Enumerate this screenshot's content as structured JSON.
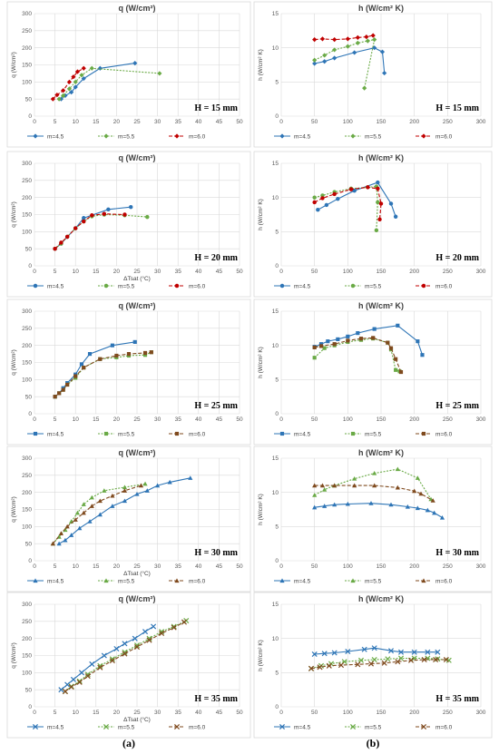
{
  "panel_labels": [
    "(a)",
    "(b)"
  ],
  "legend_labels": [
    "m=4.5",
    "m=5.5",
    "m=6.0"
  ],
  "colors": {
    "m=4.5": "#2e75b6",
    "m=5.5": "#6aaa46",
    "m=6.0": "#c00000",
    "m=6.0_alt": "#7f4a1e"
  },
  "chart_data": [
    {
      "type": "line",
      "panel": "a",
      "row": 1,
      "title": "q (W/cm²)",
      "ylabel": "q (W/cm²)",
      "xlabel": "",
      "annotation": "H = 15 mm",
      "xlim": [
        0,
        50
      ],
      "ylim": [
        0,
        300
      ],
      "xticks": [
        0,
        5,
        10,
        15,
        20,
        25,
        30,
        35,
        40,
        45,
        50
      ],
      "yticks": [
        0,
        50,
        100,
        150,
        200,
        250,
        300
      ],
      "grid": true,
      "legend": "bottom",
      "marker": "diamond",
      "series": [
        {
          "name": "m=4.5",
          "x": [
            6.5,
            7.5,
            9,
            10,
            12,
            16,
            24.5
          ],
          "y": [
            50,
            60,
            70,
            85,
            110,
            140,
            155
          ]
        },
        {
          "name": "m=5.5",
          "x": [
            6,
            7,
            8.5,
            10,
            11.5,
            14,
            30.5
          ],
          "y": [
            50,
            60,
            80,
            100,
            120,
            140,
            125
          ]
        },
        {
          "name": "m=6.0",
          "x": [
            4.5,
            5.5,
            7,
            8.5,
            9.5,
            10.5,
            12
          ],
          "y": [
            50,
            62,
            75,
            100,
            115,
            130,
            140
          ]
        }
      ]
    },
    {
      "type": "line",
      "panel": "b",
      "row": 1,
      "title": "h (W/cm² K)",
      "ylabel": "h (W/cm² K)",
      "xlabel": "",
      "annotation": "H = 15 mm",
      "xlim": [
        0,
        300
      ],
      "ylim": [
        0,
        15
      ],
      "xticks": [
        0,
        50,
        100,
        150,
        200,
        250,
        300
      ],
      "yticks": [
        0,
        5,
        10,
        15
      ],
      "grid": true,
      "legend": "bottom",
      "marker": "diamond",
      "series": [
        {
          "name": "m=4.5",
          "x": [
            50,
            65,
            80,
            110,
            140,
            152,
            155
          ],
          "y": [
            7.7,
            8.0,
            8.5,
            9.3,
            10.0,
            9.4,
            6.3
          ]
        },
        {
          "name": "m=5.5",
          "x": [
            50,
            65,
            80,
            100,
            115,
            130,
            140,
            125
          ],
          "y": [
            8.2,
            8.9,
            9.7,
            10.2,
            10.7,
            11.0,
            11.2,
            4.1
          ]
        },
        {
          "name": "m=6.0",
          "x": [
            50,
            62,
            80,
            100,
            115,
            128,
            138
          ],
          "y": [
            11.2,
            11.3,
            11.2,
            11.3,
            11.5,
            11.6,
            11.8
          ]
        }
      ]
    },
    {
      "type": "line",
      "panel": "a",
      "row": 2,
      "title": "q (W/cm²)",
      "ylabel": "q (W/cm²)",
      "xlabel": "ΔTsat (°C)",
      "annotation": "H = 20 mm",
      "xlim": [
        0,
        50
      ],
      "ylim": [
        0,
        300
      ],
      "xticks": [
        0,
        5,
        10,
        15,
        20,
        25,
        30,
        35,
        40,
        45,
        50
      ],
      "yticks": [
        0,
        50,
        100,
        150,
        200,
        250,
        300
      ],
      "grid": true,
      "legend": "bottom",
      "marker": "circle",
      "series": [
        {
          "name": "m=4.5",
          "x": [
            5,
            6.5,
            8,
            10,
            12,
            18,
            23.5
          ],
          "y": [
            50,
            65,
            85,
            110,
            140,
            165,
            172
          ]
        },
        {
          "name": "m=5.5",
          "x": [
            5,
            6.5,
            8,
            10,
            12,
            14,
            17,
            22,
            27.5
          ],
          "y": [
            50,
            65,
            85,
            110,
            130,
            145,
            150,
            148,
            143
          ]
        },
        {
          "name": "m=6.0",
          "x": [
            5,
            6.5,
            8,
            10,
            12,
            14,
            17,
            22
          ],
          "y": [
            50,
            68,
            85,
            110,
            130,
            148,
            152,
            150
          ]
        }
      ]
    },
    {
      "type": "line",
      "panel": "b",
      "row": 2,
      "title": "h (W/cm² K)",
      "ylabel": "h (W/cm² K)",
      "xlabel": "",
      "annotation": "H = 20 mm",
      "xlim": [
        0,
        300
      ],
      "ylim": [
        0,
        15
      ],
      "xticks": [
        0,
        50,
        100,
        150,
        200,
        250,
        300
      ],
      "yticks": [
        0,
        5,
        10,
        15
      ],
      "grid": true,
      "legend": "bottom",
      "marker": "circle",
      "series": [
        {
          "name": "m=4.5",
          "x": [
            55,
            68,
            85,
            110,
            145,
            165,
            172
          ],
          "y": [
            8.2,
            8.9,
            9.8,
            11.0,
            12.2,
            9.1,
            7.2
          ]
        },
        {
          "name": "m=5.5",
          "x": [
            50,
            62,
            80,
            105,
            130,
            143,
            145,
            143
          ],
          "y": [
            10.0,
            10.3,
            10.8,
            11.3,
            11.5,
            11.6,
            9.3,
            5.2
          ]
        },
        {
          "name": "m=6.0",
          "x": [
            50,
            62,
            80,
            105,
            130,
            145,
            150,
            148
          ],
          "y": [
            9.3,
            9.9,
            10.5,
            11.2,
            11.5,
            11.3,
            9.1,
            6.8
          ]
        }
      ]
    },
    {
      "type": "line",
      "panel": "a",
      "row": 3,
      "title": "q (W/cm²)",
      "ylabel": "q (W/cm²)",
      "xlabel": "",
      "annotation": "H = 25 mm",
      "xlim": [
        0,
        50
      ],
      "ylim": [
        0,
        300
      ],
      "xticks": [
        0,
        5,
        10,
        15,
        20,
        25,
        30,
        35,
        40,
        45,
        50
      ],
      "yticks": [
        0,
        50,
        100,
        150,
        200,
        250,
        300
      ],
      "grid": true,
      "legend": "bottom",
      "marker": "square",
      "series": [
        {
          "name": "m=4.5",
          "x": [
            5,
            6,
            7,
            8,
            10,
            11.5,
            13.5,
            19,
            24.5
          ],
          "y": [
            50,
            60,
            75,
            90,
            115,
            145,
            175,
            200,
            210
          ]
        },
        {
          "name": "m=5.5",
          "x": [
            5,
            6,
            7,
            8,
            10,
            12,
            16,
            20,
            23,
            27,
            28.5
          ],
          "y": [
            50,
            60,
            70,
            85,
            105,
            135,
            160,
            165,
            170,
            172,
            180
          ]
        },
        {
          "name": "m=6.0",
          "x": [
            5,
            6,
            7,
            8,
            10,
            12,
            16,
            20,
            23,
            27,
            28.5
          ],
          "y": [
            50,
            60,
            70,
            85,
            110,
            135,
            160,
            170,
            175,
            178,
            180
          ]
        }
      ]
    },
    {
      "type": "line",
      "panel": "b",
      "row": 3,
      "title": "h (W/cm² K)",
      "ylabel": "h (W/cm² K)",
      "xlabel": "",
      "annotation": "H = 25 mm",
      "xlim": [
        0,
        300
      ],
      "ylim": [
        0,
        15
      ],
      "xticks": [
        0,
        50,
        100,
        150,
        200,
        250,
        300
      ],
      "yticks": [
        0,
        5,
        10,
        15
      ],
      "grid": true,
      "legend": "bottom",
      "marker": "square",
      "series": [
        {
          "name": "m=4.5",
          "x": [
            50,
            60,
            70,
            85,
            100,
            115,
            140,
            175,
            205,
            212
          ],
          "y": [
            9.8,
            10.2,
            10.6,
            10.9,
            11.3,
            11.8,
            12.4,
            12.9,
            10.6,
            8.6
          ]
        },
        {
          "name": "m=5.5",
          "x": [
            50,
            65,
            80,
            100,
            120,
            138,
            160,
            165,
            172,
            178
          ],
          "y": [
            8.2,
            9.6,
            10.0,
            10.5,
            10.8,
            11.0,
            10.4,
            9.4,
            6.4,
            6.2
          ]
        },
        {
          "name": "m=6.0",
          "x": [
            50,
            60,
            80,
            100,
            120,
            138,
            160,
            165,
            172,
            180
          ],
          "y": [
            9.7,
            9.9,
            10.2,
            10.7,
            11.0,
            11.1,
            10.4,
            9.6,
            8.0,
            6.1
          ]
        }
      ]
    },
    {
      "type": "line",
      "panel": "a",
      "row": 4,
      "title": "q (W/cm²)",
      "ylabel": "q (W/cm²)",
      "xlabel": "ΔTsat (°C)",
      "annotation": "H = 30 mm",
      "xlim": [
        0,
        50
      ],
      "ylim": [
        0,
        300
      ],
      "xticks": [
        0,
        5,
        10,
        15,
        20,
        25,
        30,
        35,
        40,
        45,
        50
      ],
      "yticks": [
        0,
        50,
        100,
        150,
        200,
        250,
        300
      ],
      "grid": true,
      "legend": "bottom",
      "marker": "triangle",
      "series": [
        {
          "name": "m=4.5",
          "x": [
            6,
            7.5,
            9,
            11,
            13.5,
            16,
            19,
            22,
            25,
            27.5,
            30,
            33,
            38
          ],
          "y": [
            50,
            60,
            75,
            95,
            115,
            135,
            160,
            175,
            195,
            205,
            220,
            230,
            242
          ]
        },
        {
          "name": "m=5.5",
          "x": [
            4.5,
            6,
            7.5,
            9,
            10.5,
            12,
            14,
            17,
            22,
            27
          ],
          "y": [
            50,
            70,
            90,
            115,
            140,
            165,
            185,
            205,
            215,
            225
          ]
        },
        {
          "name": "m=6.0",
          "x": [
            4.5,
            6.5,
            8,
            10,
            12,
            14,
            16,
            19,
            22,
            26
          ],
          "y": [
            50,
            80,
            100,
            120,
            140,
            160,
            175,
            190,
            205,
            220
          ]
        }
      ]
    },
    {
      "type": "line",
      "panel": "b",
      "row": 4,
      "title": "h (W/cm² K)",
      "ylabel": "h (W/cm² K)",
      "xlabel": "",
      "annotation": "H = 30 mm",
      "xlim": [
        0,
        300
      ],
      "ylim": [
        0,
        15
      ],
      "xticks": [
        0,
        50,
        100,
        150,
        200,
        250,
        300
      ],
      "yticks": [
        0,
        5,
        10,
        15
      ],
      "grid": true,
      "legend": "bottom",
      "marker": "triangle",
      "series": [
        {
          "name": "m=4.5",
          "x": [
            50,
            65,
            80,
            100,
            135,
            165,
            190,
            205,
            220,
            230,
            242
          ],
          "y": [
            7.8,
            8.0,
            8.2,
            8.3,
            8.4,
            8.2,
            7.9,
            7.7,
            7.4,
            7.0,
            6.3
          ]
        },
        {
          "name": "m=5.5",
          "x": [
            50,
            65,
            80,
            110,
            140,
            175,
            205,
            225
          ],
          "y": [
            9.6,
            10.4,
            11.0,
            12.0,
            12.8,
            13.4,
            12.1,
            9.0
          ]
        },
        {
          "name": "m=6.0",
          "x": [
            50,
            62,
            80,
            110,
            140,
            175,
            200,
            210,
            228
          ],
          "y": [
            11.0,
            11.0,
            11.0,
            11.0,
            11.0,
            10.7,
            10.2,
            9.8,
            8.8
          ]
        }
      ]
    },
    {
      "type": "line",
      "panel": "a",
      "row": 5,
      "title": "q (W/cm²)",
      "ylabel": "q (W/cm²)",
      "xlabel": "ΔTsat (°C)",
      "annotation": "H = 35 mm",
      "xlim": [
        0,
        50
      ],
      "ylim": [
        0,
        300
      ],
      "xticks": [
        0,
        5,
        10,
        15,
        20,
        25,
        30,
        35,
        40,
        45,
        50
      ],
      "yticks": [
        0,
        50,
        100,
        150,
        200,
        250,
        300
      ],
      "grid": true,
      "legend": "bottom",
      "marker": "cross",
      "series": [
        {
          "name": "m=4.5",
          "x": [
            6.5,
            8,
            9.5,
            11.5,
            14,
            17,
            20,
            22,
            24.5,
            27,
            29
          ],
          "y": [
            50,
            65,
            80,
            100,
            125,
            150,
            170,
            185,
            200,
            220,
            235
          ]
        },
        {
          "name": "m=5.5",
          "x": [
            7.5,
            9,
            11,
            13,
            16,
            19,
            22,
            25,
            28,
            31,
            34,
            37
          ],
          "y": [
            45,
            60,
            75,
            95,
            120,
            140,
            160,
            180,
            200,
            220,
            235,
            252
          ]
        },
        {
          "name": "m=6.0",
          "x": [
            7.5,
            9,
            11,
            13,
            16,
            19,
            22,
            25,
            28,
            31,
            34,
            36.5
          ],
          "y": [
            45,
            58,
            72,
            90,
            115,
            135,
            155,
            175,
            195,
            215,
            232,
            248
          ]
        }
      ]
    },
    {
      "type": "line",
      "panel": "b",
      "row": 5,
      "title": "h (W/cm² K)",
      "ylabel": "h (W/cm² K)",
      "xlabel": "",
      "annotation": "H = 35 mm",
      "xlim": [
        0,
        300
      ],
      "ylim": [
        0,
        15
      ],
      "xticks": [
        0,
        50,
        100,
        150,
        200,
        250,
        300
      ],
      "yticks": [
        0,
        5,
        10,
        15
      ],
      "grid": true,
      "legend": "bottom",
      "marker": "cross",
      "series": [
        {
          "name": "m=4.5",
          "x": [
            50,
            65,
            80,
            100,
            125,
            140,
            165,
            180,
            200,
            220,
            235
          ],
          "y": [
            7.7,
            7.8,
            7.9,
            8.1,
            8.4,
            8.6,
            8.2,
            8.0,
            8.0,
            8.0,
            8.0
          ]
        },
        {
          "name": "m=5.5",
          "x": [
            45,
            60,
            75,
            95,
            120,
            140,
            160,
            180,
            200,
            220,
            235,
            252
          ],
          "y": [
            5.6,
            6.0,
            6.3,
            6.6,
            6.8,
            6.9,
            7.0,
            7.1,
            7.1,
            7.1,
            7.0,
            6.8
          ]
        },
        {
          "name": "m=6.0",
          "x": [
            45,
            58,
            72,
            90,
            115,
            135,
            155,
            175,
            195,
            215,
            232,
            248
          ],
          "y": [
            5.6,
            5.8,
            6.0,
            6.1,
            6.2,
            6.3,
            6.4,
            6.6,
            6.8,
            6.9,
            6.9,
            6.9
          ]
        }
      ]
    }
  ]
}
